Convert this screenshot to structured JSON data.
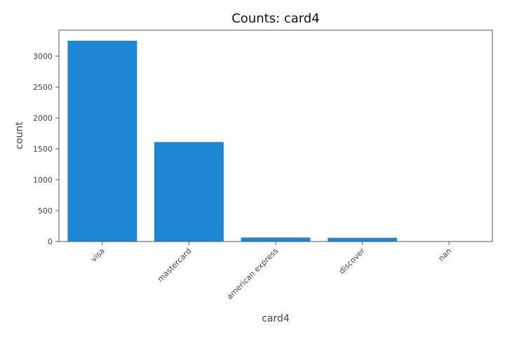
{
  "chart_data": {
    "type": "bar",
    "title": "Counts: card4",
    "xlabel": "card4",
    "ylabel": "count",
    "categories": [
      "visa",
      "mastercard",
      "american express",
      "discover",
      "nan"
    ],
    "values": [
      3250,
      1610,
      65,
      60,
      0
    ],
    "ylim": [
      0,
      3420
    ],
    "yticks": [
      "0",
      "500",
      "1000",
      "1500",
      "2000",
      "2500",
      "3000"
    ],
    "ytick_values": [
      0,
      500,
      1000,
      1500,
      2000,
      2500,
      3000
    ],
    "bar_color": "#1f86d4",
    "grid": false,
    "legend": "none"
  }
}
